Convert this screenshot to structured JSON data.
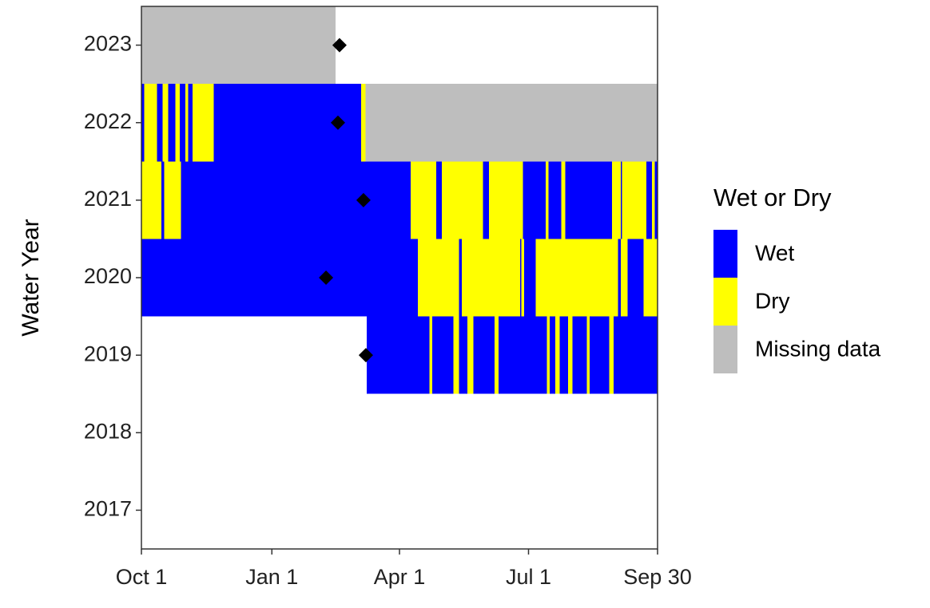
{
  "chart_data": {
    "type": "tile",
    "ylabel": "Water Year",
    "legend_title": "Wet or Dry",
    "xlim": [
      0,
      364
    ],
    "xticks": [
      {
        "value": 0,
        "label": "Oct 1"
      },
      {
        "value": 92,
        "label": "Jan 1"
      },
      {
        "value": 182,
        "label": "Apr 1"
      },
      {
        "value": 273,
        "label": "Jul 1"
      },
      {
        "value": 364,
        "label": "Sep 30"
      }
    ],
    "ylim": [
      2016.5,
      2023.5
    ],
    "yticks": [
      2017,
      2018,
      2019,
      2020,
      2021,
      2022,
      2023
    ],
    "series": [
      {
        "name": "Wet",
        "color": "#0000ff",
        "segments": [
          [
            2022,
            0,
            2
          ],
          [
            2022,
            11,
            15
          ],
          [
            2022,
            19,
            24
          ],
          [
            2022,
            27,
            31
          ],
          [
            2022,
            33,
            36
          ],
          [
            2022,
            51,
            155
          ],
          [
            2021,
            14,
            16
          ],
          [
            2021,
            28,
            190
          ],
          [
            2021,
            208,
            212
          ],
          [
            2021,
            241,
            245
          ],
          [
            2021,
            269,
            285
          ],
          [
            2021,
            287,
            296
          ],
          [
            2021,
            299,
            332
          ],
          [
            2021,
            338,
            339
          ],
          [
            2021,
            356,
            360
          ],
          [
            2021,
            362,
            364
          ],
          [
            2020,
            0,
            195
          ],
          [
            2020,
            224,
            226
          ],
          [
            2020,
            267,
            268
          ],
          [
            2020,
            270,
            278
          ],
          [
            2020,
            336,
            338
          ],
          [
            2020,
            343,
            354
          ],
          [
            2019,
            159,
            203
          ],
          [
            2019,
            205,
            220
          ],
          [
            2019,
            224,
            230
          ],
          [
            2019,
            234,
            249
          ],
          [
            2019,
            252,
            286
          ],
          [
            2019,
            288,
            292
          ],
          [
            2019,
            295,
            301
          ],
          [
            2019,
            304,
            314
          ],
          [
            2019,
            316,
            330
          ],
          [
            2019,
            333,
            364
          ]
        ]
      },
      {
        "name": "Dry",
        "color": "#ffff00",
        "segments": [
          [
            2022,
            2,
            11
          ],
          [
            2022,
            15,
            19
          ],
          [
            2022,
            24,
            27
          ],
          [
            2022,
            31,
            33
          ],
          [
            2022,
            36,
            51
          ],
          [
            2022,
            155,
            158
          ],
          [
            2021,
            0,
            14
          ],
          [
            2021,
            16,
            28
          ],
          [
            2021,
            190,
            208
          ],
          [
            2021,
            212,
            241
          ],
          [
            2021,
            245,
            269
          ],
          [
            2021,
            285,
            287
          ],
          [
            2021,
            296,
            299
          ],
          [
            2021,
            332,
            338
          ],
          [
            2021,
            339,
            356
          ],
          [
            2021,
            360,
            362
          ],
          [
            2020,
            195,
            224
          ],
          [
            2020,
            226,
            267
          ],
          [
            2020,
            268,
            270
          ],
          [
            2020,
            278,
            336
          ],
          [
            2020,
            338,
            343
          ],
          [
            2020,
            354,
            364
          ],
          [
            2019,
            203,
            205
          ],
          [
            2019,
            220,
            224
          ],
          [
            2019,
            230,
            234
          ],
          [
            2019,
            249,
            252
          ],
          [
            2019,
            286,
            288
          ],
          [
            2019,
            292,
            295
          ],
          [
            2019,
            301,
            304
          ],
          [
            2019,
            314,
            316
          ],
          [
            2019,
            330,
            333
          ]
        ]
      },
      {
        "name": "Missing data",
        "color": "#bebebe",
        "segments": [
          [
            2023,
            0,
            137
          ],
          [
            2022,
            158,
            364
          ]
        ]
      }
    ],
    "markers": {
      "color": "#000000",
      "x": [
        139.7,
        138.6,
        156.6,
        130.2,
        158.3
      ],
      "y": [
        2023,
        2022,
        2021,
        2020,
        2019
      ]
    }
  }
}
